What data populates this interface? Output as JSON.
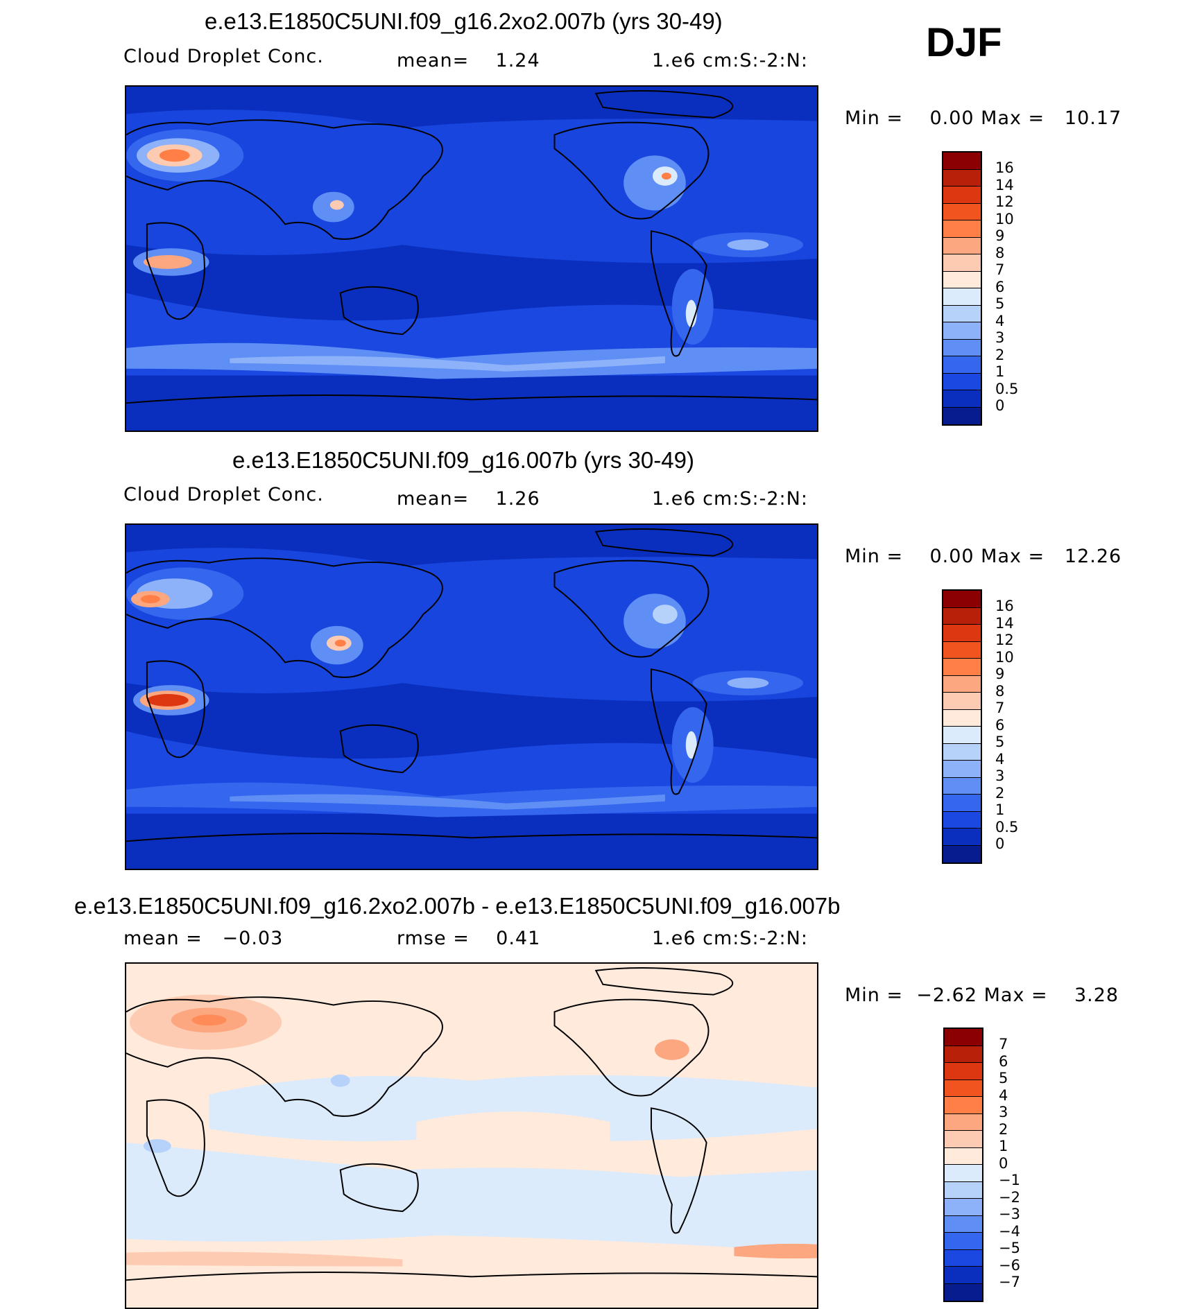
{
  "season": "DJF",
  "panels": [
    {
      "title": "e.e13.E1850C5UNI.f09_g16.2xo2.007b (yrs 30-49)",
      "variable": "Cloud Droplet Conc.",
      "stat_text": "mean=    1.24",
      "units": "1.e6 cm:S:-2:N:",
      "minmax_text": "Min =    0.00 Max =   10.17",
      "min": 0.0,
      "max": 10.17,
      "mean": 1.24
    },
    {
      "title": "e.e13.E1850C5UNI.f09_g16.007b (yrs 30-49)",
      "variable": "Cloud Droplet Conc.",
      "stat_text": "mean=    1.26",
      "units": "1.e6 cm:S:-2:N:",
      "minmax_text": "Min =    0.00 Max =   12.26",
      "min": 0.0,
      "max": 12.26,
      "mean": 1.26
    },
    {
      "title": "e.e13.E1850C5UNI.f09_g16.2xo2.007b - e.e13.E1850C5UNI.f09_g16.007b",
      "mean_text": "mean =   −0.03",
      "rmse_text": "rmse =    0.41",
      "units": "1.e6 cm:S:-2:N:",
      "minmax_text": "Min =  −2.62 Max =    3.28",
      "min": -2.62,
      "max": 3.28,
      "mean": -0.03,
      "rmse": 0.41
    }
  ],
  "colorbar_abs": {
    "labels": [
      "16",
      "14",
      "12",
      "10",
      "9",
      "8",
      "7",
      "6",
      "5",
      "4",
      "3",
      "2",
      "1",
      "0.5",
      "0"
    ],
    "colors": [
      "#8b0000",
      "#b8200a",
      "#dc3710",
      "#f2541f",
      "#ff7f47",
      "#fca780",
      "#fdcbb1",
      "#ffeadb",
      "#dcebfb",
      "#b6d2fb",
      "#8db2fa",
      "#5f8ff5",
      "#3566ee",
      "#1a48e0",
      "#0a2fbe",
      "#061c8f"
    ]
  },
  "colorbar_diff": {
    "labels": [
      "7",
      "6",
      "5",
      "4",
      "3",
      "2",
      "1",
      "0",
      "−1",
      "−2",
      "−3",
      "−4",
      "−5",
      "−6",
      "−7"
    ],
    "colors": [
      "#8b0000",
      "#b8200a",
      "#dc3710",
      "#f2541f",
      "#ff7f47",
      "#fca780",
      "#fdcbb1",
      "#ffeadb",
      "#dcebfb",
      "#b6d2fb",
      "#8db2fa",
      "#5f8ff5",
      "#3566ee",
      "#1a48e0",
      "#0a2fbe",
      "#061c8f"
    ]
  },
  "map_colors": {
    "ocean_deep": "#0a2fbe",
    "ocean_mid": "#1a48e0",
    "band": "#5f8ff5",
    "band_light": "#8db2fa",
    "warm_low": "#fdcbb1",
    "warm_mid": "#ff7f47",
    "warm_high": "#dc3710",
    "diff_base": "#ffeadb",
    "diff_neg": "#dcebfb",
    "diff_neg2": "#b6d2fb",
    "diff_pos": "#fca780"
  }
}
